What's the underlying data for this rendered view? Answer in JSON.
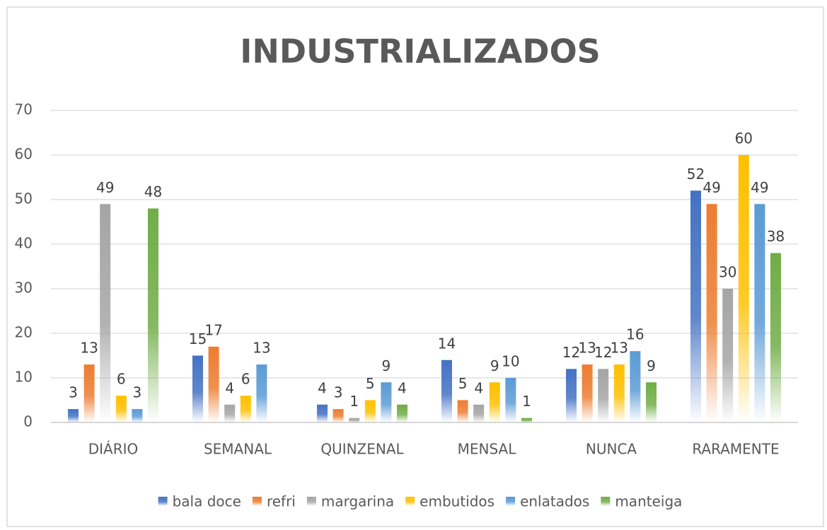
{
  "chart_data": {
    "type": "bar",
    "title": "INDUSTRIALIZADOS",
    "categories": [
      "DIÁRIO",
      "SEMANAL",
      "QUINZENAL",
      "MENSAL",
      "NUNCA",
      "RARAMENTE"
    ],
    "series": [
      {
        "name": "bala doce",
        "color": "#4472c4",
        "values": [
          3,
          15,
          4,
          14,
          12,
          52
        ]
      },
      {
        "name": "refri",
        "color": "#ed7d31",
        "values": [
          13,
          17,
          3,
          5,
          13,
          49
        ]
      },
      {
        "name": "margarina",
        "color": "#a5a5a5",
        "values": [
          49,
          4,
          1,
          4,
          12,
          30
        ]
      },
      {
        "name": "embutidos",
        "color": "#ffc000",
        "values": [
          6,
          6,
          5,
          9,
          13,
          60
        ]
      },
      {
        "name": "enlatados",
        "color": "#5b9bd5",
        "values": [
          3,
          13,
          9,
          10,
          16,
          49
        ]
      },
      {
        "name": "manteiga",
        "color": "#70ad47",
        "values": [
          48,
          null,
          4,
          1,
          9,
          38
        ]
      }
    ],
    "ylim": [
      0,
      70
    ],
    "yticks": [
      0,
      10,
      20,
      30,
      40,
      50,
      60,
      70
    ],
    "grid": true,
    "legend": "bottom"
  }
}
